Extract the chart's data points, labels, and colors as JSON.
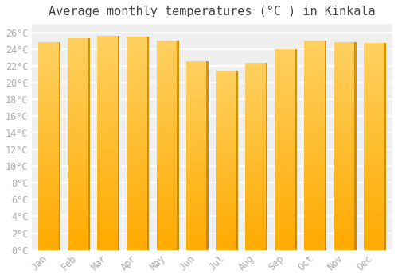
{
  "title": "Average monthly temperatures (°C ) in Kinkala",
  "months": [
    "Jan",
    "Feb",
    "Mar",
    "Apr",
    "May",
    "Jun",
    "Jul",
    "Aug",
    "Sep",
    "Oct",
    "Nov",
    "Dec"
  ],
  "values": [
    24.8,
    25.3,
    25.6,
    25.5,
    25.0,
    22.5,
    21.4,
    22.4,
    24.0,
    25.0,
    24.8,
    24.7
  ],
  "bar_color_left": "#FFAA00",
  "bar_color_center": "#FFD060",
  "bar_color_right": "#CC8800",
  "ylim": [
    0,
    27
  ],
  "ytick_max": 26,
  "ytick_step": 2,
  "background_color": "#ffffff",
  "plot_bg_color": "#efefef",
  "grid_color": "#ffffff",
  "title_fontsize": 11,
  "tick_fontsize": 8.5,
  "tick_label_color": "#aaaaaa",
  "title_color": "#444444"
}
